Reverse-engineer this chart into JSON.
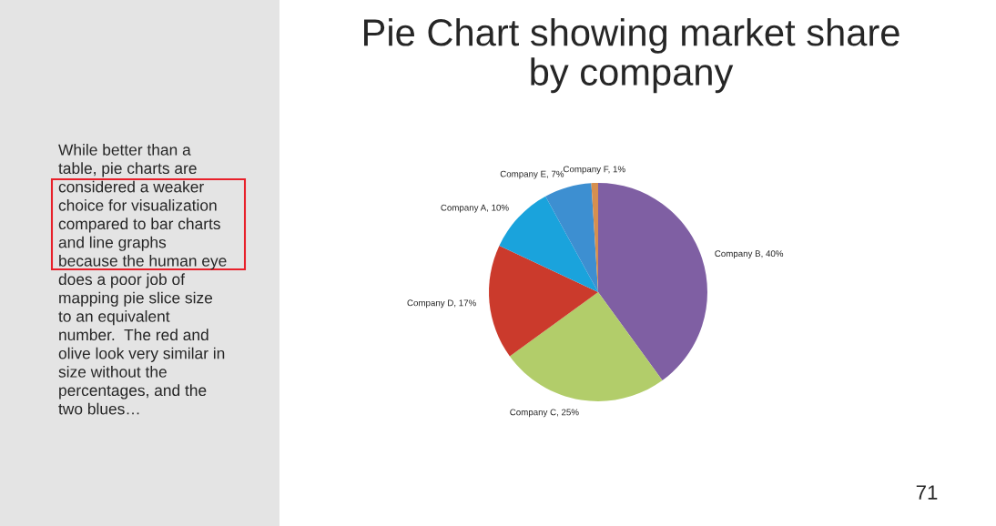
{
  "chart_data": {
    "type": "pie",
    "title": "Pie Chart showing market share\nby company",
    "categories": [
      "Company B, 40%",
      "Company C, 25%",
      "Company D, 17%",
      "Company A, 10%",
      "Company E, 7%",
      "Company F, 1%"
    ],
    "values": [
      40,
      25,
      17,
      10,
      7,
      1
    ],
    "colors": [
      "#7f5fa3",
      "#b2cd6a",
      "#cb3a2c",
      "#1aa3dc",
      "#3d8fd1",
      "#d68f4f"
    ],
    "annotations": [
      "While better than a\ntable, pie charts are\nconsidered a weaker\nchoice for visualization\ncompared to bar charts\nand line graphs\nbecause the human eye\ndoes a poor job of\nmapping pie slice size\nto an equivalent\nnumber.  The red and\nolive look very similar in\nsize without the\npercentages, and the\ntwo blues…",
      "71"
    ]
  }
}
